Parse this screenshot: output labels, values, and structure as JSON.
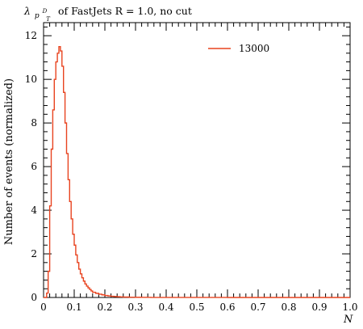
{
  "chart_data": {
    "type": "line",
    "title": {
      "lambda": "λ",
      "sub_main": "p",
      "sub_sup": "D",
      "sub_sub": "T",
      "rest": "of FastJets R = 1.0, no cut"
    },
    "xlabel": "N",
    "ylabel": "Number of events (normalized)",
    "xlim": [
      0,
      1.0
    ],
    "ylim": [
      0,
      12.6
    ],
    "x_ticks": [
      "0",
      "0.1",
      "0.2",
      "0.3",
      "0.4",
      "0.5",
      "0.6",
      "0.7",
      "0.8",
      "0.9",
      "1.0"
    ],
    "y_ticks": [
      "0",
      "2",
      "4",
      "6",
      "8",
      "10",
      "12"
    ],
    "legend_position": "top-right",
    "series": [
      {
        "name": "13000",
        "color": "#e8431f",
        "bin_edges": [
          0,
          0.01,
          0.015,
          0.02,
          0.025,
          0.03,
          0.035,
          0.04,
          0.045,
          0.05,
          0.055,
          0.06,
          0.065,
          0.07,
          0.075,
          0.08,
          0.085,
          0.09,
          0.095,
          0.1,
          0.105,
          0.11,
          0.115,
          0.12,
          0.125,
          0.13,
          0.135,
          0.14,
          0.145,
          0.15,
          0.155,
          0.16,
          0.17,
          0.18,
          0.19,
          0.2,
          0.21,
          0.22,
          0.23,
          0.24,
          0.25,
          0.26,
          0.28,
          0.3,
          0.32,
          0.35,
          0.38,
          0.42,
          0.46,
          0.5,
          0.6,
          0.7,
          0.8,
          0.9,
          1.0
        ],
        "values": [
          0,
          0.2,
          1.2,
          4.2,
          6.8,
          8.6,
          10.0,
          10.8,
          11.2,
          11.5,
          11.3,
          10.6,
          9.4,
          8.0,
          6.6,
          5.4,
          4.4,
          3.6,
          2.9,
          2.4,
          1.95,
          1.6,
          1.3,
          1.08,
          0.9,
          0.75,
          0.62,
          0.52,
          0.44,
          0.37,
          0.3,
          0.24,
          0.19,
          0.15,
          0.12,
          0.09,
          0.07,
          0.055,
          0.045,
          0.035,
          0.025,
          0.018,
          0.012,
          0.009,
          0.006,
          0.004,
          0.003,
          0.002,
          0.001,
          0.0006,
          0.0004,
          0.0002,
          0.0001,
          0
        ]
      }
    ]
  }
}
